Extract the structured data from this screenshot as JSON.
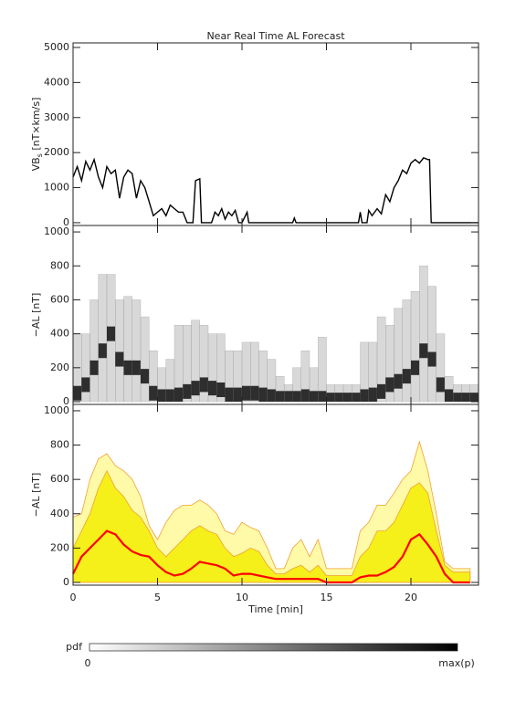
{
  "chart_data": [
    {
      "type": "line",
      "title": "Near Real Time AL Forecast",
      "ylabel": {
        "main": "VB",
        "sub": "s",
        "rest": " [nT×km/s]"
      },
      "xlim": [
        0,
        24
      ],
      "ylim": [
        -80,
        5130
      ],
      "yticks": [
        0,
        1000,
        2000,
        3000,
        4000,
        5000
      ],
      "x": [
        0,
        0.25,
        0.5,
        0.75,
        1,
        1.25,
        1.5,
        1.75,
        2,
        2.25,
        2.5,
        2.75,
        3,
        3.25,
        3.5,
        3.75,
        4,
        4.25,
        4.5,
        4.75,
        5,
        5.25,
        5.5,
        5.75,
        6,
        6.25,
        6.5,
        6.75,
        7.1,
        7.25,
        7.5,
        7.6,
        8.2,
        8.4,
        8.6,
        8.8,
        9,
        9.2,
        9.4,
        9.6,
        9.8,
        10,
        10.3,
        10.4,
        13,
        13.1,
        13.2,
        16.9,
        17,
        17.1,
        17.4,
        17.5,
        17.7,
        18,
        18.25,
        18.5,
        18.75,
        19,
        19.25,
        19.5,
        19.75,
        20,
        20.25,
        20.5,
        20.75,
        21,
        21.1,
        21.2,
        24
      ],
      "series": [
        {
          "color": "#000000",
          "values": [
            1300,
            1600,
            1200,
            1750,
            1500,
            1800,
            1300,
            1000,
            1600,
            1400,
            1500,
            700,
            1300,
            1500,
            1400,
            700,
            1200,
            1000,
            600,
            200,
            300,
            400,
            200,
            500,
            400,
            300,
            300,
            0,
            0,
            1200,
            1250,
            0,
            0,
            300,
            200,
            400,
            100,
            300,
            200,
            350,
            0,
            0,
            300,
            0,
            0,
            130,
            0,
            0,
            300,
            0,
            0,
            350,
            200,
            400,
            250,
            800,
            600,
            1000,
            1200,
            1500,
            1400,
            1700,
            1800,
            1700,
            1850,
            1800,
            1800,
            0,
            0
          ]
        }
      ]
    },
    {
      "type": "heatmap",
      "ylabel": "−AL [nT]",
      "xlim": [
        0,
        24
      ],
      "ylim": [
        -16,
        1038
      ],
      "yticks": [
        0,
        200,
        400,
        600,
        800,
        1000
      ],
      "x": [
        0,
        0.5,
        1,
        1.5,
        2,
        2.5,
        3,
        3.5,
        4,
        4.5,
        5,
        5.5,
        6,
        6.5,
        7,
        7.5,
        8,
        8.5,
        9,
        9.5,
        10,
        10.5,
        11,
        11.5,
        12,
        12.5,
        13,
        13.5,
        14,
        14.5,
        15,
        15.5,
        16,
        16.5,
        17,
        17.5,
        18,
        18.5,
        19,
        19.5,
        20,
        20.5,
        21,
        21.5,
        22,
        22.5,
        23,
        23.5
      ],
      "series": [
        {
          "color": "#b8b8b8",
          "values": [
            400,
            400,
            600,
            750,
            750,
            600,
            620,
            600,
            500,
            300,
            200,
            250,
            450,
            450,
            480,
            450,
            400,
            400,
            300,
            300,
            350,
            350,
            300,
            250,
            150,
            100,
            200,
            300,
            200,
            380,
            100,
            100,
            100,
            100,
            350,
            350,
            500,
            450,
            550,
            600,
            650,
            800,
            680,
            400,
            150,
            100,
            100,
            100
          ]
        },
        {
          "color": "#101010",
          "values": [
            50,
            100,
            200,
            300,
            400,
            250,
            200,
            200,
            150,
            50,
            30,
            30,
            40,
            60,
            80,
            100,
            80,
            70,
            40,
            40,
            50,
            50,
            40,
            30,
            20,
            20,
            20,
            30,
            20,
            20,
            10,
            10,
            10,
            10,
            30,
            40,
            60,
            100,
            120,
            150,
            200,
            300,
            250,
            100,
            30,
            10,
            10,
            10
          ]
        }
      ]
    },
    {
      "type": "area",
      "ylabel": "−AL [nT]",
      "xlabel": "Time [min]",
      "edge_color": "#f0a030",
      "xlim": [
        0,
        24
      ],
      "ylim": [
        -16,
        1037
      ],
      "yticks": [
        0,
        200,
        400,
        600,
        800,
        1000
      ],
      "xticks": [
        0,
        5,
        10,
        15,
        20
      ],
      "x": [
        0,
        0.5,
        1,
        1.5,
        2,
        2.5,
        3,
        3.5,
        4,
        4.5,
        5,
        5.5,
        6,
        6.5,
        7,
        7.5,
        8,
        8.5,
        9,
        9.5,
        10,
        10.5,
        11,
        11.5,
        12,
        12.5,
        13,
        13.5,
        14,
        14.5,
        15,
        15.5,
        16,
        16.5,
        17,
        17.5,
        18,
        18.5,
        19,
        19.5,
        20,
        20.5,
        21,
        21.5,
        22,
        22.5,
        23,
        23.5
      ],
      "series": [
        {
          "color": "#fffaa8",
          "values": [
            380,
            400,
            600,
            720,
            750,
            680,
            650,
            600,
            500,
            330,
            250,
            350,
            420,
            450,
            450,
            480,
            450,
            400,
            300,
            280,
            350,
            320,
            300,
            200,
            80,
            80,
            200,
            250,
            150,
            250,
            80,
            80,
            80,
            80,
            300,
            350,
            450,
            450,
            520,
            600,
            650,
            820,
            650,
            400,
            120,
            80,
            80,
            80
          ]
        },
        {
          "color": "#f5ef1a",
          "values": [
            200,
            300,
            400,
            550,
            650,
            550,
            500,
            420,
            380,
            300,
            200,
            150,
            200,
            250,
            300,
            330,
            300,
            280,
            200,
            150,
            170,
            200,
            180,
            100,
            50,
            50,
            80,
            100,
            60,
            100,
            40,
            40,
            40,
            40,
            150,
            200,
            300,
            300,
            350,
            450,
            550,
            580,
            520,
            300,
            100,
            60,
            60,
            60
          ]
        },
        {
          "color": "#ff0000",
          "values": [
            50,
            150,
            200,
            250,
            300,
            280,
            220,
            180,
            160,
            150,
            100,
            60,
            40,
            50,
            80,
            120,
            110,
            100,
            80,
            40,
            50,
            50,
            40,
            30,
            20,
            20,
            20,
            20,
            20,
            20,
            0,
            0,
            0,
            0,
            30,
            40,
            40,
            60,
            90,
            150,
            250,
            280,
            220,
            150,
            50,
            0,
            0,
            0
          ]
        }
      ]
    }
  ],
  "colorbar": {
    "label": "pdf",
    "min_label": "0",
    "max_label": "max(p)"
  }
}
